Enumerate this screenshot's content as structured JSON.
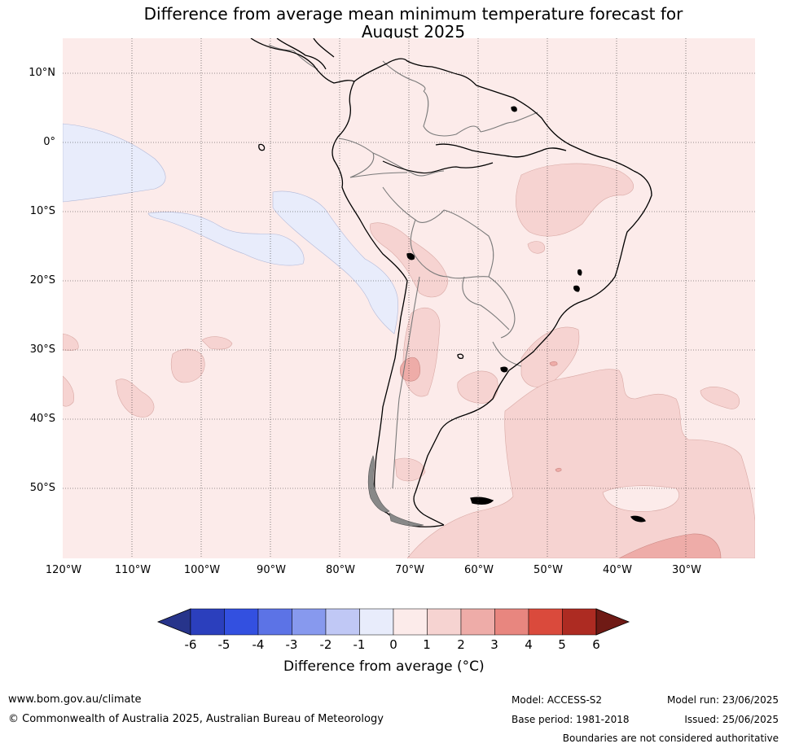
{
  "title": {
    "line1": "Difference from average mean minimum temperature forecast for",
    "line2": "August 2025"
  },
  "map": {
    "lat_labels": [
      "10°N",
      "0°",
      "10°S",
      "20°S",
      "30°S",
      "40°S",
      "50°S"
    ],
    "lon_labels": [
      "120°W",
      "110°W",
      "100°W",
      "90°W",
      "80°W",
      "70°W",
      "60°W",
      "50°W",
      "40°W",
      "30°W"
    ],
    "extent": {
      "lon_min": -120,
      "lon_max": -20,
      "lat_min": -60,
      "lat_max": 15
    }
  },
  "colorbar": {
    "ticks": [
      "-6",
      "-5",
      "-4",
      "-3",
      "-2",
      "-1",
      "0",
      "1",
      "2",
      "3",
      "4",
      "5",
      "6"
    ],
    "colors": [
      "#27348b",
      "#2b3fbd",
      "#3350e0",
      "#5c73e6",
      "#8799ee",
      "#c0c8f5",
      "#e8ecfb",
      "#fcebea",
      "#f6d3d1",
      "#eeaca8",
      "#e8867f",
      "#da4a3c",
      "#ad2b22",
      "#6f1a15"
    ],
    "label": "Difference from average (°C)"
  },
  "footer": {
    "website": "www.bom.gov.au/climate",
    "copyright": "© Commonwealth of Australia 2025, Australian Bureau of Meteorology",
    "model": "Model: ACCESS-S2",
    "base_period": "Base period: 1981-2018",
    "model_run": "Model run: 23/06/2025",
    "issued": "Issued: 25/06/2025",
    "disclaimer": "Boundaries are not considered authoritative"
  }
}
